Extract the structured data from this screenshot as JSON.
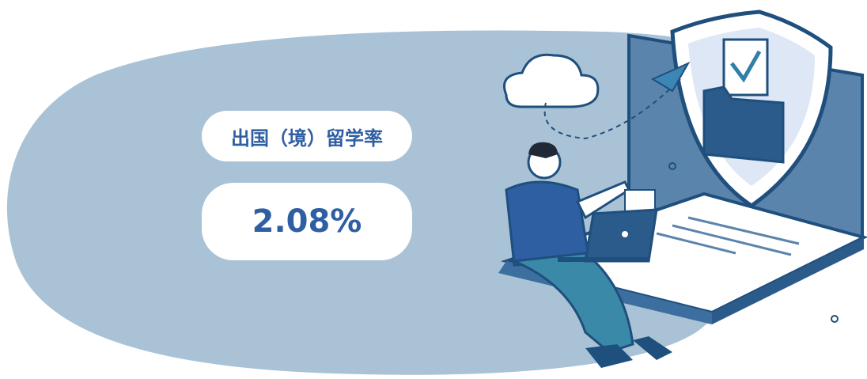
{
  "indicator": {
    "label": "出国（境）留学率",
    "value": "2.08%"
  }
}
